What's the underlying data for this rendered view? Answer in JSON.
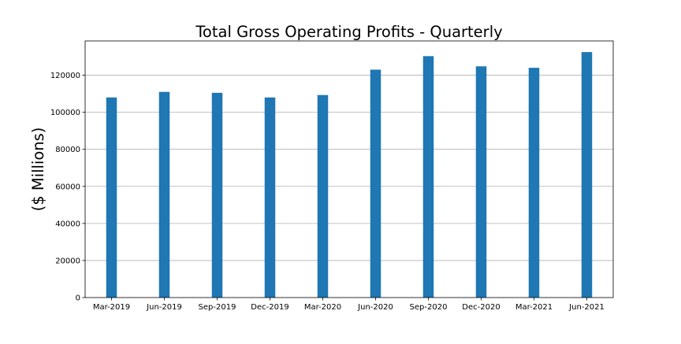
{
  "chart_data": {
    "type": "bar",
    "title": "Total Gross Operating Profits - Quarterly",
    "xlabel": "",
    "ylabel": "($ Millions)",
    "categories": [
      "Mar-2019",
      "Jun-2019",
      "Sep-2019",
      "Dec-2019",
      "Mar-2020",
      "Jun-2020",
      "Sep-2020",
      "Dec-2020",
      "Mar-2021",
      "Jun-2021"
    ],
    "values": [
      108000,
      111000,
      110500,
      108000,
      109300,
      123000,
      130300,
      124800,
      124000,
      132500
    ],
    "ylim": [
      0,
      138500
    ],
    "yticks": [
      0,
      20000,
      40000,
      60000,
      80000,
      100000,
      120000
    ],
    "ytick_labels": [
      "0",
      "20000",
      "40000",
      "60000",
      "80000",
      "100000",
      "120000"
    ],
    "grid": "y",
    "legend": "none",
    "bar_color": "#1f77b4",
    "grid_color": "#b0b0b0"
  }
}
